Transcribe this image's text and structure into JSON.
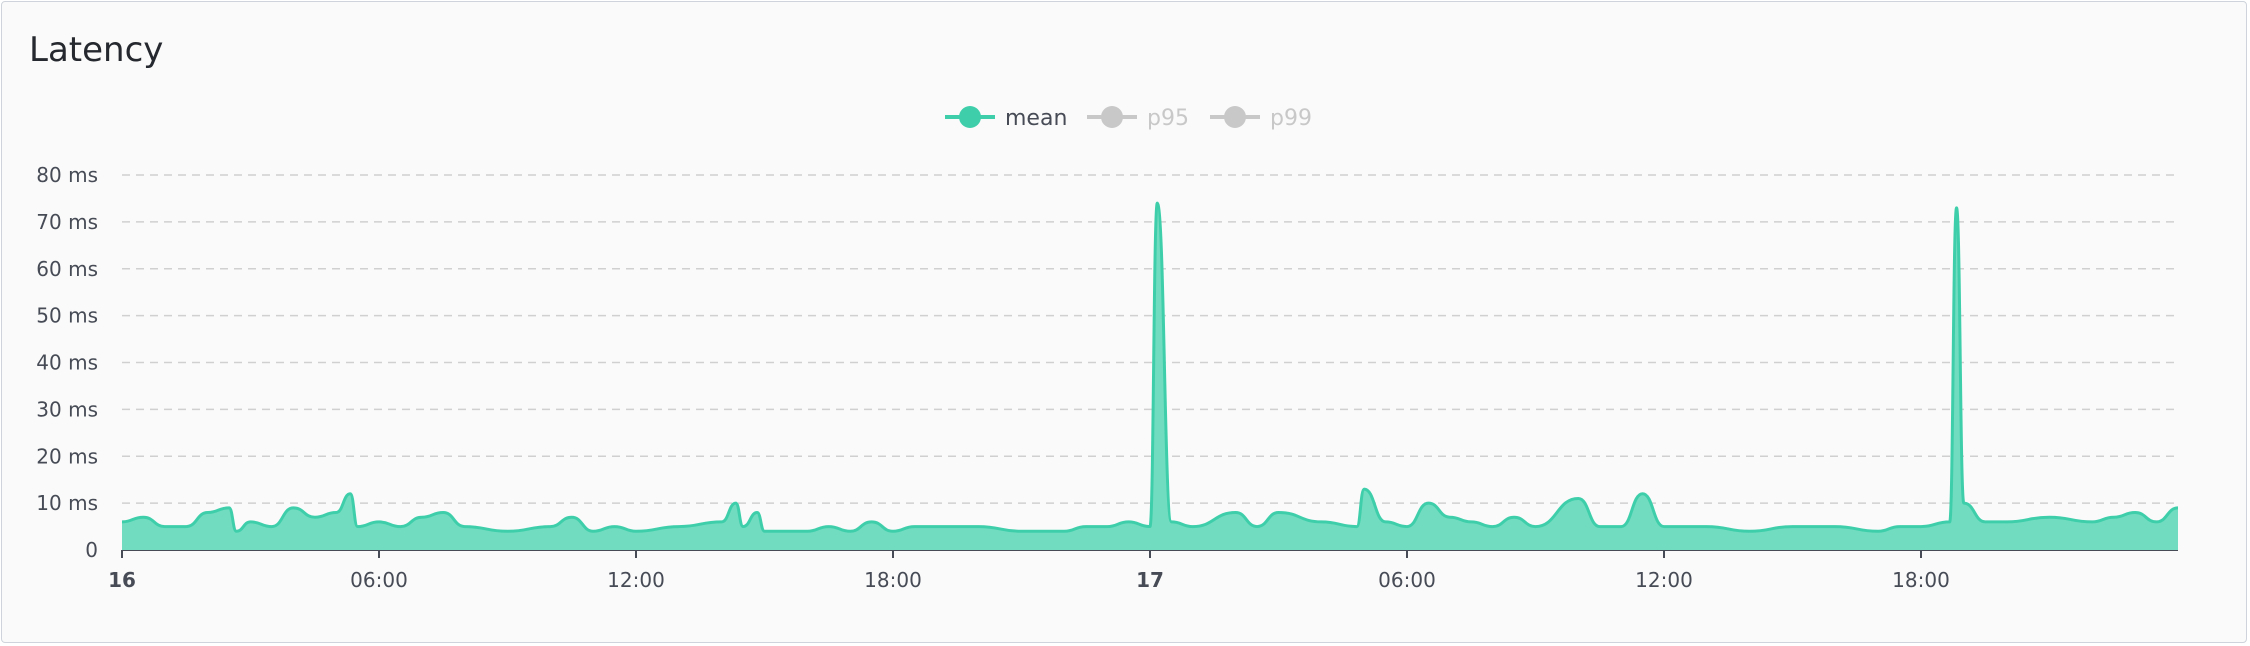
{
  "panel": {
    "title": "Latency"
  },
  "colors": {
    "mean": "#3ecfaa",
    "mean_fill": "#72dcc0",
    "disabled": "#c8c8c8",
    "grid": "#d0d0d0",
    "axis": "#464b55"
  },
  "chart_data": {
    "type": "area",
    "title": "Latency",
    "xlabel": "",
    "ylabel": "",
    "ylim": [
      0,
      80
    ],
    "y_ticks": [
      "0",
      "10 ms",
      "20 ms",
      "30 ms",
      "40 ms",
      "50 ms",
      "60 ms",
      "70 ms",
      "80 ms"
    ],
    "x_range_hours": [
      0,
      48
    ],
    "x_ticks": [
      {
        "label": "16",
        "bold": true
      },
      {
        "label": "06:00",
        "bold": false
      },
      {
        "label": "12:00",
        "bold": false
      },
      {
        "label": "18:00",
        "bold": false
      },
      {
        "label": "17",
        "bold": true
      },
      {
        "label": "06:00",
        "bold": false
      },
      {
        "label": "12:00",
        "bold": false
      },
      {
        "label": "18:00",
        "bold": false
      }
    ],
    "grid": true,
    "legend_position": "top-center",
    "legend": [
      {
        "name": "mean",
        "active": true
      },
      {
        "name": "p95",
        "active": false
      },
      {
        "name": "p99",
        "active": false
      }
    ],
    "series": [
      {
        "name": "mean",
        "x_hours": [
          0,
          0.5,
          1,
          1.5,
          2,
          2.5,
          2.67,
          3,
          3.5,
          4,
          4.5,
          5,
          5.33,
          5.5,
          6,
          6.5,
          7,
          7.5,
          8,
          9,
          10,
          10.5,
          11,
          11.5,
          12,
          13,
          14,
          14.33,
          14.5,
          14.83,
          15,
          15.5,
          16,
          16.5,
          17,
          17.5,
          18,
          18.5,
          19,
          20,
          21,
          22,
          22.5,
          23,
          23.5,
          24,
          24.17,
          24.5,
          25,
          26,
          26.5,
          27,
          28,
          28.83,
          29,
          29.5,
          30,
          30.5,
          31,
          31.5,
          32,
          32.5,
          33,
          34,
          34.5,
          35,
          35.5,
          36,
          37,
          38,
          39,
          40,
          41,
          41.5,
          42,
          42.67,
          42.83,
          43,
          43.5,
          44,
          45,
          46,
          46.5,
          47,
          47.5,
          48
        ],
        "y": [
          6,
          7,
          5,
          5,
          8,
          9,
          4,
          6,
          5,
          9,
          7,
          8,
          12,
          5,
          6,
          5,
          7,
          8,
          5,
          4,
          5,
          7,
          4,
          5,
          4,
          5,
          6,
          10,
          5,
          8,
          4,
          4,
          4,
          5,
          4,
          6,
          4,
          5,
          5,
          5,
          4,
          4,
          5,
          5,
          6,
          5,
          74,
          6,
          5,
          8,
          5,
          8,
          6,
          5,
          13,
          6,
          5,
          10,
          7,
          6,
          5,
          7,
          5,
          11,
          5,
          5,
          12,
          5,
          5,
          4,
          5,
          5,
          4,
          5,
          5,
          6,
          73,
          10,
          6,
          6,
          7,
          6,
          7,
          8,
          6,
          9
        ]
      }
    ]
  }
}
